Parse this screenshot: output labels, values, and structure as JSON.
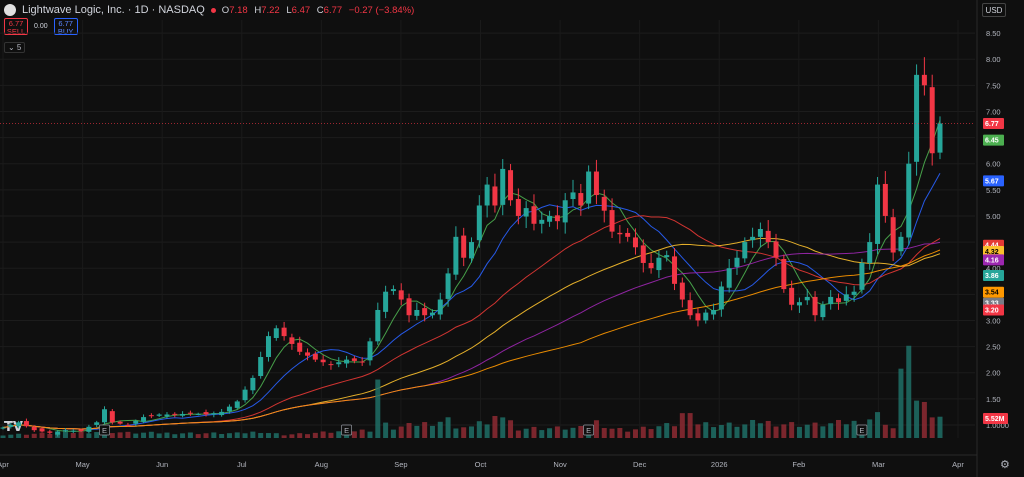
{
  "header": {
    "title": "Lightwave Logic, Inc. · 1D · NASDAQ",
    "ohlc": [
      {
        "label": "O",
        "value": "7.18"
      },
      {
        "label": "H",
        "value": "7.22"
      },
      {
        "label": "L",
        "value": "6.47"
      },
      {
        "label": "C",
        "value": "6.77"
      },
      {
        "label": "",
        "value": "−0.27 (−3.84%)"
      }
    ]
  },
  "trade": {
    "sell_price": "6.77",
    "sell_label": "SELL",
    "spread": "0.00",
    "buy_price": "6.77",
    "buy_label": "BUY"
  },
  "collapse_label": "⌄ 5",
  "currency": "USD",
  "colors": {
    "up": "#26a69a",
    "down": "#f23645",
    "ma_green": "#4caf50",
    "ma_blue": "#2962ff",
    "ma_red": "#e53935",
    "ma_purple": "#9c27b0",
    "ma_yellow": "#fbc02d",
    "ma_orange": "#ff9800"
  },
  "chart_data": {
    "type": "candlestick",
    "x_ticks": [
      "Apr",
      "May",
      "Jun",
      "Jul",
      "Aug",
      "Sep",
      "Oct",
      "Nov",
      "Dec",
      "2026",
      "Feb",
      "Mar",
      "Apr"
    ],
    "y_ticks": [
      "1.0000",
      "1.50",
      "2.00",
      "2.50",
      "3.00",
      "3.50",
      "4.00",
      "4.50",
      "5.00",
      "5.50",
      "6.00",
      "6.50",
      "7.00",
      "7.50",
      "8.00",
      "8.50"
    ],
    "y_tick_values": [
      1.0,
      1.5,
      2.0,
      2.5,
      3.0,
      3.5,
      4.0,
      4.5,
      5.0,
      5.5,
      6.0,
      6.5,
      7.0,
      7.5,
      8.0,
      8.5
    ],
    "ylim": [
      0.75,
      8.75
    ],
    "last_price": 6.77,
    "price_path": [
      [
        0,
        0.95
      ],
      [
        2,
        1.05
      ],
      [
        4,
        0.9
      ],
      [
        6,
        0.85
      ],
      [
        8,
        0.9
      ],
      [
        10,
        0.88
      ],
      [
        12,
        1.05
      ],
      [
        13,
        1.3
      ],
      [
        14,
        1.05
      ],
      [
        16,
        1.0
      ],
      [
        18,
        1.15
      ],
      [
        20,
        1.2
      ],
      [
        22,
        1.2
      ],
      [
        24,
        1.22
      ],
      [
        26,
        1.2
      ],
      [
        28,
        1.25
      ],
      [
        30,
        1.45
      ],
      [
        32,
        1.9
      ],
      [
        33,
        2.3
      ],
      [
        34,
        2.7
      ],
      [
        35,
        2.85
      ],
      [
        36,
        2.7
      ],
      [
        38,
        2.4
      ],
      [
        40,
        2.25
      ],
      [
        42,
        2.15
      ],
      [
        44,
        2.25
      ],
      [
        46,
        2.2
      ],
      [
        47,
        2.6
      ],
      [
        48,
        3.2
      ],
      [
        49,
        3.55
      ],
      [
        50,
        3.6
      ],
      [
        51,
        3.4
      ],
      [
        52,
        3.1
      ],
      [
        53,
        3.2
      ],
      [
        54,
        3.1
      ],
      [
        55,
        3.15
      ],
      [
        56,
        3.4
      ],
      [
        57,
        3.9
      ],
      [
        58,
        4.6
      ],
      [
        59,
        4.2
      ],
      [
        60,
        4.5
      ],
      [
        61,
        5.2
      ],
      [
        62,
        5.6
      ],
      [
        63,
        5.2
      ],
      [
        64,
        5.9
      ],
      [
        65,
        5.3
      ],
      [
        66,
        5.0
      ],
      [
        67,
        5.15
      ],
      [
        68,
        4.85
      ],
      [
        70,
        5.0
      ],
      [
        71,
        4.9
      ],
      [
        72,
        5.3
      ],
      [
        73,
        5.45
      ],
      [
        74,
        5.2
      ],
      [
        75,
        5.85
      ],
      [
        76,
        5.4
      ],
      [
        77,
        5.1
      ],
      [
        78,
        4.7
      ],
      [
        80,
        4.6
      ],
      [
        81,
        4.4
      ],
      [
        82,
        4.1
      ],
      [
        83,
        4.0
      ],
      [
        84,
        4.2
      ],
      [
        85,
        4.25
      ],
      [
        86,
        3.7
      ],
      [
        87,
        3.4
      ],
      [
        88,
        3.1
      ],
      [
        89,
        3.0
      ],
      [
        90,
        3.15
      ],
      [
        91,
        3.2
      ],
      [
        92,
        3.65
      ],
      [
        93,
        4.0
      ],
      [
        94,
        4.2
      ],
      [
        95,
        4.5
      ],
      [
        96,
        4.6
      ],
      [
        97,
        4.75
      ],
      [
        98,
        4.5
      ],
      [
        99,
        4.2
      ],
      [
        100,
        3.6
      ],
      [
        101,
        3.3
      ],
      [
        102,
        3.35
      ],
      [
        103,
        3.45
      ],
      [
        104,
        3.1
      ],
      [
        105,
        3.3
      ],
      [
        106,
        3.45
      ],
      [
        107,
        3.35
      ],
      [
        108,
        3.5
      ],
      [
        109,
        3.55
      ],
      [
        110,
        4.1
      ],
      [
        111,
        4.5
      ],
      [
        112,
        5.6
      ],
      [
        113,
        5.0
      ],
      [
        114,
        4.3
      ],
      [
        115,
        4.6
      ],
      [
        116,
        6.0
      ],
      [
        117,
        7.7
      ],
      [
        118,
        7.5
      ],
      [
        119,
        6.2
      ],
      [
        120,
        6.77
      ]
    ],
    "volume_path": [
      [
        0,
        0.05
      ],
      [
        13,
        0.1
      ],
      [
        16,
        0.08
      ],
      [
        30,
        0.07
      ],
      [
        33,
        0.1
      ],
      [
        34,
        0.08
      ],
      [
        36,
        0.05
      ],
      [
        47,
        0.12
      ],
      [
        48,
        0.9
      ],
      [
        49,
        0.2
      ],
      [
        50,
        0.15
      ],
      [
        57,
        0.28
      ],
      [
        58,
        0.18
      ],
      [
        60,
        0.15
      ],
      [
        61,
        0.3
      ],
      [
        62,
        0.2
      ],
      [
        64,
        0.35
      ],
      [
        66,
        0.15
      ],
      [
        74,
        0.15
      ],
      [
        76,
        0.25
      ],
      [
        78,
        0.15
      ],
      [
        80,
        0.12
      ],
      [
        86,
        0.2
      ],
      [
        88,
        0.5
      ],
      [
        89,
        0.22
      ],
      [
        92,
        0.2
      ],
      [
        95,
        0.2
      ],
      [
        97,
        0.25
      ],
      [
        100,
        0.22
      ],
      [
        104,
        0.2
      ],
      [
        110,
        0.25
      ],
      [
        112,
        0.35
      ],
      [
        114,
        0.15
      ],
      [
        116,
        1.65
      ],
      [
        117,
        0.55
      ],
      [
        118,
        0.45
      ],
      [
        119,
        0.35
      ],
      [
        120,
        0.3
      ]
    ],
    "moving_averages": [
      {
        "color": "#4caf50",
        "value": 6.45,
        "label": "6.45"
      },
      {
        "color": "#2962ff",
        "value": 5.67,
        "label": "5.67"
      },
      {
        "color": "#e53935",
        "value": 4.44,
        "label": "4.44"
      },
      {
        "color": "#fbc02d",
        "value": 4.32,
        "label": "4.32"
      },
      {
        "color": "#9c27b0",
        "value": 4.16,
        "label": "4.16"
      },
      {
        "color": "#26a69a",
        "value": 3.86,
        "label": "3.86"
      },
      {
        "color": "#ff9800",
        "value": 3.54,
        "label": "3.54"
      },
      {
        "color": "#787b86",
        "value": 3.33,
        "label": "3.33"
      },
      {
        "color": "#f23645",
        "value": 3.2,
        "label": "3.20"
      }
    ],
    "volume_last": "5.52M",
    "earnings_marker": "E",
    "earnings_indices": [
      13,
      44,
      75,
      110
    ]
  }
}
